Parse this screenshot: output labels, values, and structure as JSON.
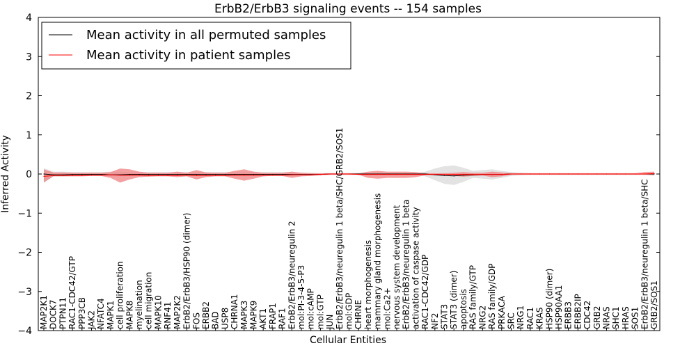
{
  "chart_data": {
    "type": "line",
    "title": "ErbB2/ErbB3 signaling events -- 154 samples",
    "xlabel": "Cellular Entities",
    "ylabel": "Inferred Activity",
    "ylim": [
      -4,
      4
    ],
    "yticks": [
      -4,
      -3,
      -2,
      -1,
      0,
      1,
      2,
      3,
      4
    ],
    "ytick_labels": [
      "−4",
      "−3",
      "−2",
      "−1",
      "0",
      "1",
      "2",
      "3",
      "4"
    ],
    "grid": false,
    "legend_position": "top-left",
    "categories": [
      "MAP2K1",
      "DOCK7",
      "PTPN11",
      "RAC1-CDC42/GTP",
      "PPP3CB",
      "JAK2",
      "NFATC4",
      "MAPK1",
      "cell proliferation",
      "MAPK8",
      "myelination",
      "cell migration",
      "MAPK10",
      "RNF41",
      "MAP2K2",
      "ErbB2/ErbB3/HSP90 (dimer)",
      "FOS",
      "ERBB2",
      "BAD",
      "USP8",
      "CHRNA1",
      "MAPK3",
      "MAPK9",
      "AKT1",
      "FRAP1",
      "RAF1",
      "ErbB2/ErbB3/neuregulin 2",
      "mol:PI-3-4-5-P3",
      "mol:cAMP",
      "mol:GTP",
      "JUN",
      "ErbB2/ErbB3/neuregulin 1 beta/SHC/GRB2/SOS1",
      "mol:GDP",
      "CHRNE",
      "heart morphogenesis",
      "mammary gland morphogenesis",
      "mol:Ca2+",
      "nervous system development",
      "ErbB2/ErbB3/neuregulin 1 beta",
      "activation of caspase activity",
      "RAC1-CDC42/GDP",
      "NF2",
      "STAT3",
      "STAT3 (dimer)",
      "apoptosis",
      "RAS family/GTP",
      "NRG2",
      "RAS family/GDP",
      "PRKACA",
      "SRC",
      "NRG1",
      "RAC1",
      "KRAS",
      "HSP90 (dimer)",
      "HSP90AA1",
      "ERBB3",
      "ERBB2IP",
      "CDC42",
      "GRB2",
      "NRAS",
      "SHC1",
      "HRAS",
      "SOS1",
      "ErbB2/ErbB3/neuregulin 1 beta/SHC",
      "GRB2/SOS1"
    ],
    "series": [
      {
        "name": "Mean activity in all permuted samples",
        "color": "#000000",
        "values": [
          0.0,
          -0.02,
          -0.02,
          -0.01,
          -0.01,
          -0.01,
          -0.01,
          -0.02,
          -0.02,
          -0.01,
          -0.01,
          -0.01,
          -0.01,
          -0.01,
          -0.01,
          -0.01,
          -0.01,
          -0.01,
          -0.01,
          -0.01,
          -0.01,
          -0.01,
          -0.01,
          -0.01,
          -0.01,
          -0.01,
          -0.01,
          -0.01,
          -0.01,
          -0.01,
          0.0,
          0.0,
          0.0,
          0.0,
          0.0,
          0.0,
          0.0,
          0.0,
          0.0,
          0.0,
          0.0,
          -0.02,
          -0.04,
          -0.05,
          -0.03,
          -0.02,
          -0.01,
          -0.01,
          -0.01,
          0.0,
          0.0,
          0.0,
          0.0,
          0.0,
          0.0,
          0.0,
          0.0,
          0.0,
          0.0,
          0.0,
          0.0,
          0.0,
          0.0,
          0.0,
          0.0
        ],
        "band_low": [
          -0.2,
          -0.06,
          -0.06,
          -0.05,
          -0.05,
          -0.05,
          -0.05,
          -0.06,
          -0.06,
          -0.05,
          -0.05,
          -0.05,
          -0.05,
          -0.05,
          -0.05,
          -0.05,
          -0.05,
          -0.05,
          -0.05,
          -0.05,
          -0.05,
          -0.05,
          -0.05,
          -0.05,
          -0.05,
          -0.05,
          -0.05,
          -0.04,
          -0.03,
          -0.02,
          -0.02,
          -0.02,
          -0.02,
          -0.02,
          -0.02,
          -0.02,
          -0.02,
          -0.02,
          -0.02,
          -0.02,
          -0.06,
          -0.16,
          -0.25,
          -0.28,
          -0.2,
          -0.1,
          -0.12,
          -0.14,
          -0.1,
          -0.05,
          -0.03,
          -0.02,
          -0.02,
          -0.02,
          -0.02,
          -0.02,
          -0.02,
          -0.02,
          -0.02,
          -0.02,
          -0.02,
          -0.02,
          -0.02,
          -0.02,
          -0.02
        ],
        "band_high": [
          0.15,
          0.06,
          0.06,
          0.05,
          0.05,
          0.05,
          0.05,
          0.06,
          0.06,
          0.05,
          0.05,
          0.05,
          0.05,
          0.05,
          0.05,
          0.05,
          0.05,
          0.05,
          0.05,
          0.05,
          0.05,
          0.05,
          0.05,
          0.05,
          0.05,
          0.05,
          0.05,
          0.04,
          0.03,
          0.02,
          0.02,
          0.02,
          0.02,
          0.02,
          0.02,
          0.02,
          0.02,
          0.02,
          0.02,
          0.02,
          0.06,
          0.14,
          0.2,
          0.22,
          0.16,
          0.08,
          0.1,
          0.12,
          0.08,
          0.05,
          0.03,
          0.02,
          0.02,
          0.02,
          0.02,
          0.02,
          0.02,
          0.02,
          0.02,
          0.02,
          0.02,
          0.02,
          0.02,
          0.02,
          0.03
        ]
      },
      {
        "name": "Mean activity in patient samples",
        "color": "#ff0000",
        "values": [
          -0.06,
          -0.04,
          -0.04,
          -0.04,
          -0.04,
          -0.03,
          -0.03,
          -0.02,
          -0.03,
          -0.03,
          -0.03,
          -0.04,
          -0.04,
          -0.04,
          -0.04,
          -0.03,
          -0.04,
          -0.04,
          -0.04,
          -0.04,
          -0.03,
          -0.03,
          -0.03,
          -0.03,
          -0.03,
          -0.03,
          -0.02,
          -0.02,
          -0.02,
          -0.01,
          0.0,
          0.0,
          0.0,
          -0.01,
          -0.01,
          -0.01,
          -0.01,
          -0.01,
          -0.01,
          -0.01,
          -0.01,
          -0.01,
          -0.01,
          -0.01,
          -0.01,
          -0.01,
          -0.01,
          -0.01,
          -0.01,
          0.0,
          0.0,
          0.0,
          0.0,
          0.0,
          0.0,
          0.0,
          0.0,
          0.0,
          0.0,
          0.0,
          0.0,
          0.0,
          0.0,
          0.0,
          0.01
        ],
        "band_low": [
          -0.22,
          -0.06,
          -0.06,
          -0.06,
          -0.06,
          -0.05,
          -0.05,
          -0.1,
          -0.22,
          -0.14,
          -0.08,
          -0.07,
          -0.06,
          -0.06,
          -0.08,
          -0.06,
          -0.14,
          -0.08,
          -0.06,
          -0.06,
          -0.12,
          -0.17,
          -0.12,
          -0.06,
          -0.05,
          -0.05,
          -0.1,
          -0.06,
          -0.05,
          -0.03,
          -0.02,
          -0.02,
          -0.02,
          -0.02,
          -0.1,
          -0.12,
          -0.1,
          -0.1,
          -0.1,
          -0.08,
          -0.03,
          -0.02,
          -0.02,
          -0.05,
          -0.07,
          -0.05,
          -0.04,
          -0.08,
          -0.06,
          -0.02,
          -0.02,
          -0.02,
          -0.02,
          -0.02,
          -0.02,
          -0.02,
          -0.02,
          -0.02,
          -0.02,
          -0.02,
          -0.02,
          -0.02,
          -0.02,
          -0.02,
          -0.03
        ],
        "band_high": [
          0.12,
          0.04,
          0.04,
          0.03,
          0.03,
          0.03,
          0.03,
          0.05,
          0.14,
          0.12,
          0.06,
          0.03,
          0.03,
          0.03,
          0.06,
          0.03,
          0.1,
          0.04,
          0.03,
          0.03,
          0.08,
          0.12,
          0.06,
          0.03,
          0.03,
          0.03,
          0.06,
          0.03,
          0.02,
          0.02,
          0.02,
          0.02,
          0.02,
          0.02,
          0.06,
          0.08,
          0.06,
          0.06,
          0.06,
          0.05,
          0.02,
          0.02,
          0.02,
          0.03,
          0.05,
          0.03,
          0.03,
          0.06,
          0.04,
          0.02,
          0.02,
          0.02,
          0.02,
          0.02,
          0.02,
          0.02,
          0.02,
          0.02,
          0.02,
          0.02,
          0.02,
          0.02,
          0.02,
          0.05,
          0.06
        ]
      }
    ]
  }
}
